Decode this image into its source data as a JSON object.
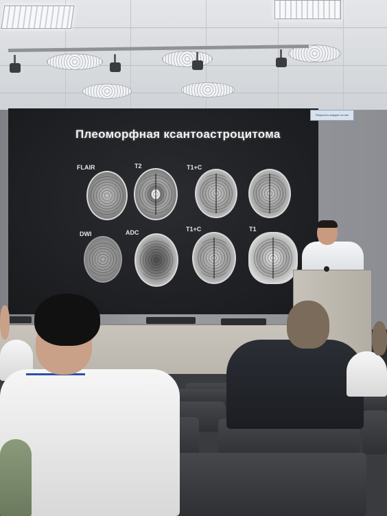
{
  "slide": {
    "title": "Плеоморфная ксантоастроцитома",
    "labels": {
      "flair": "FLAIR",
      "t2": "T2",
      "t1c_top": "T1+C",
      "dwi": "DWI",
      "adc": "ADC",
      "t1c_bottom": "T1+C",
      "t1": "T1"
    }
  },
  "overlay": {
    "text": "Попросить каждого из них"
  }
}
